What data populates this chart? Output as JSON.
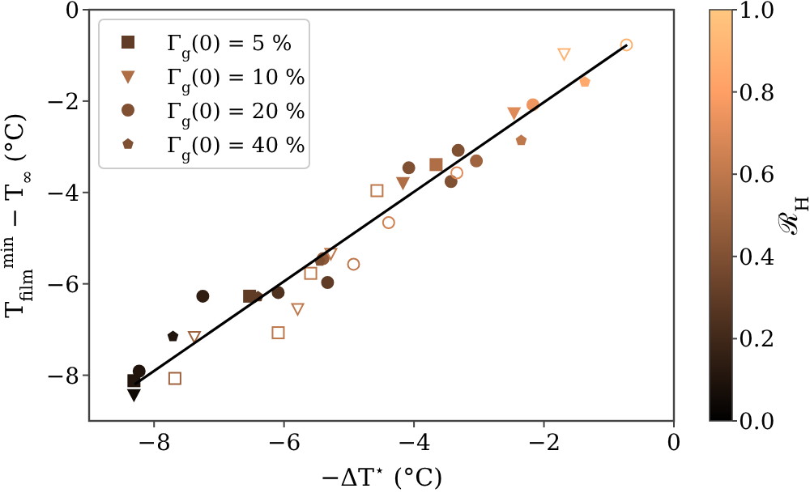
{
  "chart_data": {
    "type": "scatter",
    "xlabel": "−ΔT$^{⋆}$ (°C)",
    "ylabel": "T$_{film}$$^{min}$ − T$_{∞}$ (°C)",
    "clabel": "ℛ$_{H}$",
    "xlim": [
      -9,
      0
    ],
    "xticks": [
      {
        "value": -8,
        "label": "−8"
      },
      {
        "value": -6,
        "label": "−6"
      },
      {
        "value": -4,
        "label": "−4"
      },
      {
        "value": -2,
        "label": "−2"
      },
      0
    ],
    "ylim": [
      -9,
      0
    ],
    "yticks": [
      {
        "value": -8,
        "label": "−8"
      },
      {
        "value": -6,
        "label": "−6"
      },
      {
        "value": -4,
        "label": "−4"
      },
      {
        "value": -2,
        "label": "−2"
      },
      0
    ],
    "clim": [
      0,
      1
    ],
    "cticks": [
      {
        "value": 0,
        "label": "0.0"
      },
      0.2,
      0.4,
      0.6,
      0.8,
      {
        "value": 1,
        "label": "1.0"
      }
    ],
    "legend": "top left",
    "grid": false,
    "series": [
      {
        "name": "Γ$_{g}$(0) = 5 %",
        "marker": "square",
        "x": [
          -8.31,
          -6.53,
          -3.66
        ],
        "values": [
          -8.12,
          -6.27,
          -3.39
        ],
        "cvalues": [
          0.1,
          0.3,
          0.55
        ],
        "colors": [
          "#20140d",
          "#603c26",
          "#af6e46"
        ]
      },
      {
        "name": "Γ$_{g}$(0) = 10 %",
        "marker": "triangle",
        "x": [
          -8.31,
          -4.17,
          -2.46
        ],
        "values": [
          -8.42,
          -3.78,
          -2.25
        ],
        "cvalues": [
          0.05,
          0.55,
          0.7
        ],
        "colors": [
          "#100a06",
          "#af6e46",
          "#df8b59"
        ]
      },
      {
        "name": "Γ$_{g}$(0) = 20 %",
        "marker": "circle",
        "x": [
          -8.23,
          -7.25,
          -6.09,
          -5.33,
          -5.4,
          -4.08,
          -3.32,
          -3.04,
          -3.43,
          -2.17
        ],
        "values": [
          -7.91,
          -6.27,
          -6.19,
          -5.97,
          -5.45,
          -3.46,
          -3.08,
          -3.31,
          -3.76,
          -2.08
        ],
        "cvalues": [
          0.1,
          0.15,
          0.25,
          0.3,
          0.45,
          0.4,
          0.4,
          0.5,
          0.4,
          0.75
        ],
        "colors": [
          "#20140d",
          "#301e13",
          "#503220",
          "#603c26",
          "#8f5a39",
          "#805033",
          "#805033",
          "#9f643f",
          "#805033",
          "#ef955f"
        ]
      },
      {
        "name": "Γ$_{g}$(0) = 40 %",
        "x": [
          -7.71,
          -6.4,
          -5.45,
          -2.35,
          -1.37
        ],
        "values": [
          -7.15,
          -6.28,
          -5.5,
          -2.86,
          -1.58
        ],
        "cvalues": [
          0.1,
          0.3,
          0.4,
          0.6,
          0.85
        ],
        "colors": [
          "#20140d",
          "#603c26",
          "#805033",
          "#bf784c",
          "#ffa96c"
        ]
      },
      {
        "marker": "square",
        "x": [
          -7.68,
          -6.09,
          -5.59,
          -4.57
        ],
        "values": [
          -8.07,
          -7.07,
          -5.77,
          -3.96
        ],
        "colors": [
          "#9f643f",
          "#bf784c",
          "#bf784c",
          "#bf784c"
        ]
      },
      {
        "marker": "triangle",
        "x": [
          -7.38,
          -5.79,
          -5.28,
          -1.69
        ],
        "values": [
          -7.15,
          -6.54,
          -5.33,
          -0.96
        ],
        "colors": [
          "#9f643f",
          "#bf784c",
          "#bf784c",
          "#ffb372"
        ]
      },
      {
        "marker": "circle",
        "x": [
          -4.93,
          -4.39,
          -3.34,
          -0.73
        ],
        "values": [
          -5.57,
          -4.66,
          -3.57,
          -0.77
        ],
        "colors": [
          "#bf784c",
          "#cf8152",
          "#df8b59",
          "#ffb372"
        ]
      },
      {
        "type": "line",
        "color": "#000000",
        "x": [
          -8.3,
          -0.72
        ],
        "values": [
          -8.2,
          -0.77
        ]
      }
    ]
  }
}
